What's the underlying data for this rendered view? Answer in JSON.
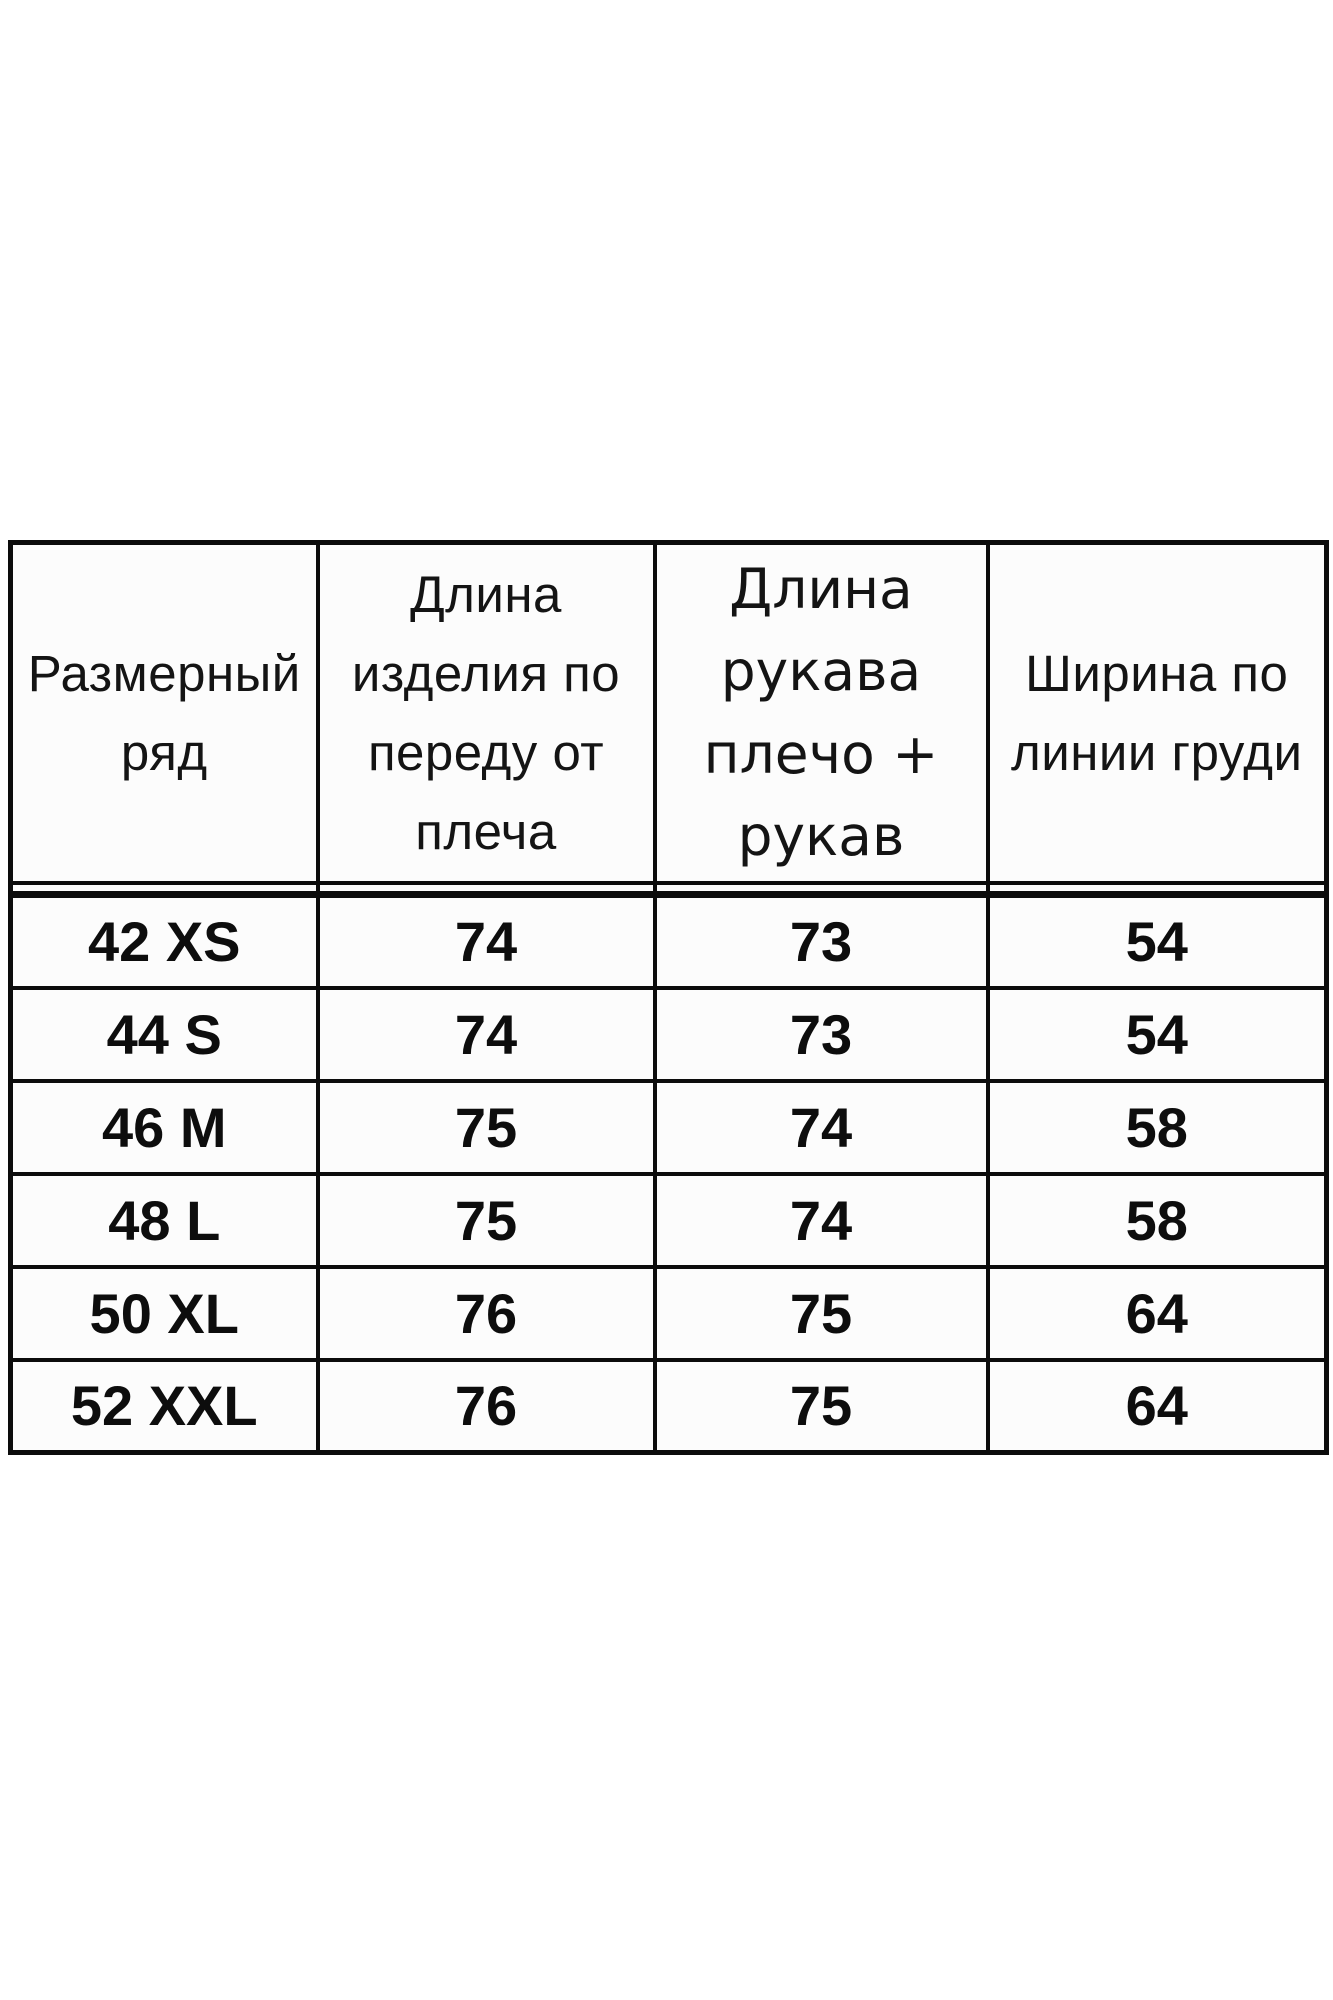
{
  "table": {
    "columns": [
      {
        "key": "size",
        "label": "Размерный\nряд"
      },
      {
        "key": "front_length",
        "label": "Длина\nизделия по\nпереду от\nплеча"
      },
      {
        "key": "sleeve_length",
        "label": "Длина\nрукава\nплечо +\nрукав"
      },
      {
        "key": "chest_width",
        "label": "Ширина по\nлинии груди"
      }
    ],
    "rows": [
      {
        "size": "42 XS",
        "front_length": "74",
        "sleeve_length": "73",
        "chest_width": "54"
      },
      {
        "size": "44 S",
        "front_length": "74",
        "sleeve_length": "73",
        "chest_width": "54"
      },
      {
        "size": "46 M",
        "front_length": "75",
        "sleeve_length": "74",
        "chest_width": "58"
      },
      {
        "size": "48 L",
        "front_length": "75",
        "sleeve_length": "74",
        "chest_width": "58"
      },
      {
        "size": "50 XL",
        "front_length": "76",
        "sleeve_length": "75",
        "chest_width": "64"
      },
      {
        "size": "52 XXL",
        "front_length": "76",
        "sleeve_length": "75",
        "chest_width": "64"
      }
    ],
    "colors": {
      "border": "#0c0c0c",
      "text": "#141414",
      "cell_background": "#fcfcfc",
      "page_background": "#ffffff"
    }
  },
  "chart_data": {
    "type": "table",
    "columns": [
      "Размерный ряд",
      "Длина изделия по переду от плеча",
      "Длина рукава плечо + рукав",
      "Ширина по линии груди"
    ],
    "rows": [
      [
        "42 XS",
        74,
        73,
        54
      ],
      [
        "44 S",
        74,
        73,
        54
      ],
      [
        "46 M",
        75,
        74,
        58
      ],
      [
        "48 L",
        75,
        74,
        58
      ],
      [
        "50 XL",
        76,
        75,
        64
      ],
      [
        "52 XXL",
        76,
        75,
        64
      ]
    ]
  }
}
